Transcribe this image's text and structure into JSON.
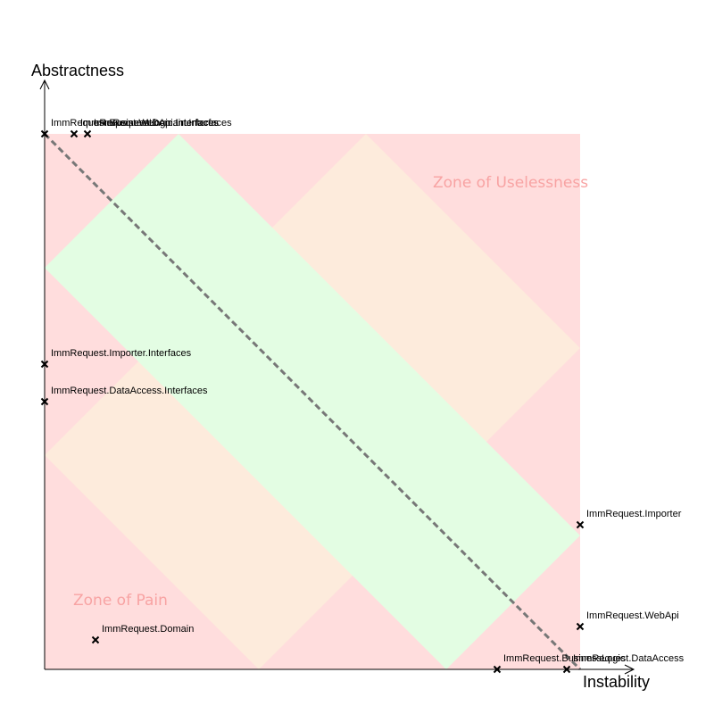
{
  "chart_data": {
    "type": "scatter",
    "title": "",
    "xlabel": "Instability",
    "ylabel": "Abstractness",
    "xlim": [
      0,
      1
    ],
    "ylim": [
      0,
      1
    ],
    "main_sequence": {
      "from": [
        0,
        1
      ],
      "to": [
        1,
        0
      ],
      "style": "dashed"
    },
    "zones": [
      {
        "name": "Zone of Pain",
        "label": "Zone of Pain",
        "corner": "bottom-left"
      },
      {
        "name": "Zone of Uselessness",
        "label": "Zone of Uselessness",
        "corner": "top-right"
      }
    ],
    "points": [
      {
        "name": "ImmRequest.Importer.Interfaces",
        "x": 0.0,
        "y": 0.57
      },
      {
        "name": "ImmRequest.DataAccess.Interfaces",
        "x": 0.0,
        "y": 0.5
      },
      {
        "name": "ImmRequest.BusinessLogic.Interfaces",
        "x": 0.0,
        "y": 1.0
      },
      {
        "name": "ImmRequest.WebApi.Interfaces",
        "x": 0.055,
        "y": 1.0
      },
      {
        "name": "ImmRequest.Domain.Interfaces",
        "x": 0.08,
        "y": 1.0
      },
      {
        "name": "ImmRequest.Domain",
        "x": 0.095,
        "y": 0.055
      },
      {
        "name": "ImmRequest.Importer",
        "x": 1.0,
        "y": 0.27
      },
      {
        "name": "ImmRequest.WebApi",
        "x": 1.0,
        "y": 0.08
      },
      {
        "name": "ImmRequest.BusinessLogic",
        "x": 0.845,
        "y": 0.0
      },
      {
        "name": "ImmRequest.DataAccess",
        "x": 0.975,
        "y": 0.0
      }
    ]
  },
  "colors": {
    "pain": "#ffdddd",
    "warning": "#fdebdc",
    "safe": "#e3fde3",
    "zone_text": "#f8a3a3",
    "main_sequence": "#777777",
    "axis": "#000000"
  }
}
